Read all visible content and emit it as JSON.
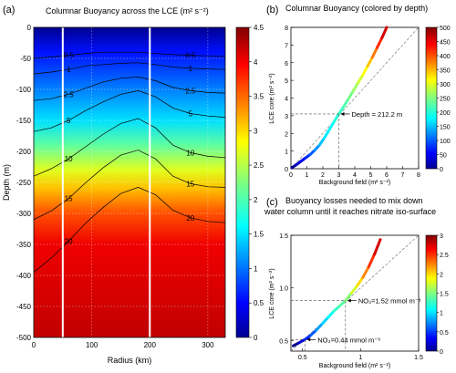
{
  "panel_a": {
    "letter": "(a)",
    "title": "Columnar Buoyancy across the  LCE  (m² s⁻²)",
    "xlabel": "Radius (km)",
    "ylabel": "Depth (m)"
  },
  "panel_b": {
    "letter": "(b)",
    "title": "Columnar Buoyancy (colored by depth)",
    "xlabel": "Background field (m² s⁻²)",
    "ylabel": "LCE core (m² s⁻²)",
    "annotation": "Depth = 212.2 m"
  },
  "panel_c": {
    "letter": "(c)",
    "title_line1": "Buoyancy losses needed to mix down",
    "title_line2": "water column until it reaches nitrate iso-surface",
    "xlabel": "Background field (m² s⁻²)",
    "ylabel": "LCE core (m² s⁻²)",
    "annotation1": "NO₃=1.52 mmol m⁻³",
    "annotation2": "NO₃=0.44 mmol m⁻³"
  },
  "chart_data": [
    {
      "type": "heatmap",
      "title": "Columnar Buoyancy across the  LCE  (m² s⁻²)",
      "xlabel": "Radius (km)",
      "ylabel": "Depth (m)",
      "xlim": [
        0,
        330
      ],
      "ylim": [
        -500,
        0
      ],
      "xticks": [
        "0",
        "100",
        "200",
        "300"
      ],
      "yticks": [
        "0",
        "-50",
        "-100",
        "-150",
        "-200",
        "-250",
        "-300",
        "-350",
        "-400",
        "-450",
        "-500"
      ],
      "colorbar": {
        "range": [
          0,
          4.5
        ],
        "ticks": [
          "0",
          "0.5",
          "1",
          "1.5",
          "2",
          "2.5",
          "3",
          "3.5",
          "4",
          "4.5"
        ]
      },
      "vertical_lines_km": [
        50,
        200
      ],
      "contours": [
        {
          "level": "0.5",
          "depth": [
            -50,
            -48,
            -45,
            -42,
            -40,
            -40,
            -40,
            -42,
            -44,
            -45,
            -46,
            -47
          ]
        },
        {
          "level": "1",
          "depth": [
            -75,
            -72,
            -68,
            -62,
            -60,
            -58,
            -57,
            -60,
            -64,
            -66,
            -67,
            -68
          ]
        },
        {
          "level": "2.5",
          "depth": [
            -118,
            -115,
            -108,
            -98,
            -88,
            -82,
            -80,
            -86,
            -97,
            -102,
            -105,
            -106
          ]
        },
        {
          "level": "5",
          "depth": [
            -168,
            -162,
            -150,
            -134,
            -120,
            -108,
            -102,
            -112,
            -130,
            -139,
            -143,
            -145
          ]
        },
        {
          "level": "10",
          "depth": [
            -240,
            -228,
            -212,
            -192,
            -172,
            -155,
            -147,
            -162,
            -190,
            -202,
            -208,
            -210
          ]
        },
        {
          "level": "15",
          "depth": [
            -310,
            -296,
            -276,
            -250,
            -226,
            -206,
            -198,
            -212,
            -240,
            -252,
            -257,
            -258
          ]
        },
        {
          "level": "20",
          "depth": [
            -395,
            -372,
            -345,
            -315,
            -290,
            -268,
            -258,
            -270,
            -295,
            -307,
            -313,
            -315
          ]
        }
      ],
      "contour_radius_km": [
        0,
        30,
        60,
        90,
        120,
        150,
        180,
        210,
        240,
        270,
        300,
        330
      ]
    },
    {
      "type": "line",
      "title": "Columnar Buoyancy (colored by depth)",
      "xlabel": "Background field (m² s⁻²)",
      "ylabel": "LCE core (m² s⁻²)",
      "xlim": [
        0,
        8
      ],
      "ylim": [
        0,
        8
      ],
      "xticks": [
        "0",
        "1",
        "2",
        "3",
        "4",
        "5",
        "6",
        "7",
        "8"
      ],
      "yticks": [
        "0",
        "1",
        "2",
        "3",
        "4",
        "5",
        "6",
        "7",
        "8"
      ],
      "colorbar": {
        "range": [
          0,
          500
        ],
        "ticks": [
          "0",
          "50",
          "100",
          "150",
          "200",
          "250",
          "300",
          "350",
          "400",
          "450",
          "500"
        ]
      },
      "x": [
        0.05,
        0.3,
        0.6,
        0.9,
        1.2,
        1.5,
        1.8,
        2.1,
        2.4,
        2.7,
        3.0,
        3.3,
        3.6,
        3.9,
        4.2,
        4.5,
        4.8,
        5.1,
        5.4,
        5.7,
        6.0
      ],
      "y": [
        0.05,
        0.2,
        0.4,
        0.6,
        0.8,
        1.05,
        1.35,
        1.75,
        2.2,
        2.65,
        3.1,
        3.5,
        3.95,
        4.4,
        4.85,
        5.3,
        5.8,
        6.3,
        6.85,
        7.4,
        8.0
      ],
      "depth": [
        0,
        25,
        50,
        75,
        100,
        125,
        150,
        170,
        185,
        200,
        212,
        225,
        245,
        265,
        290,
        315,
        345,
        380,
        420,
        460,
        500
      ],
      "reference_line": "1:1",
      "marker": {
        "x": 3.0,
        "y": 3.1,
        "label": "Depth = 212.2 m"
      }
    },
    {
      "type": "line",
      "title": "Buoyancy losses needed to mix down water column until it reaches nitrate iso-surface",
      "xlabel": "Background field (m² s⁻²)",
      "ylabel": "LCE core (m² s⁻²)",
      "xlim": [
        0.4,
        1.5
      ],
      "ylim": [
        0.4,
        1.5
      ],
      "xticks": [
        "0.5",
        "1",
        "1.5"
      ],
      "yticks": [
        "0.5",
        "1.0",
        "1.5"
      ],
      "colorbar": {
        "range": [
          0,
          3
        ],
        "ticks": [
          "0",
          "0.5",
          "1",
          "1.5",
          "2",
          "2.5",
          "3"
        ]
      },
      "x": [
        0.42,
        0.47,
        0.52,
        0.57,
        0.62,
        0.67,
        0.72,
        0.77,
        0.82,
        0.87,
        0.92,
        0.97,
        1.02,
        1.07,
        1.12,
        1.17
      ],
      "y": [
        0.45,
        0.48,
        0.51,
        0.55,
        0.6,
        0.66,
        0.72,
        0.78,
        0.83,
        0.88,
        0.95,
        1.02,
        1.1,
        1.2,
        1.32,
        1.46
      ],
      "no3": [
        0.0,
        0.2,
        0.44,
        0.6,
        0.8,
        0.95,
        1.1,
        1.25,
        1.38,
        1.52,
        1.75,
        2.0,
        2.25,
        2.5,
        2.75,
        3.0
      ],
      "reference_line": "1:1",
      "markers": [
        {
          "x": 0.87,
          "y": 0.88,
          "label": "NO₃=1.52 mmol m⁻³"
        },
        {
          "x": 0.52,
          "y": 0.51,
          "label": "NO₃=0.44 mmol m⁻³"
        }
      ]
    }
  ]
}
